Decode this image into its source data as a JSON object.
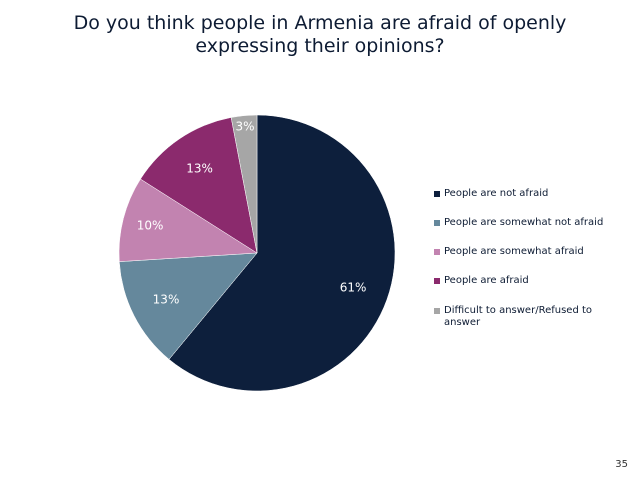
{
  "slide": {
    "title": "Do you think people in Armenia are afraid of openly expressing their opinions?",
    "page_number": "35"
  },
  "chart_data": {
    "type": "pie",
    "title": "Do you think people in Armenia are afraid of openly expressing their opinions?",
    "legend_position": "right",
    "start": "12 o'clock, clockwise",
    "categories": [
      "People are not afraid",
      "People are somewhat not afraid",
      "People are somewhat afraid",
      "People are afraid",
      "Difficult to answer/Refused to answer"
    ],
    "values": [
      61,
      13,
      10,
      13,
      3
    ],
    "labels": [
      "61%",
      "13%",
      "10%",
      "13%",
      "3%"
    ],
    "colors": [
      "#0d1f3c",
      "#65889c",
      "#c283b0",
      "#8b2a6d",
      "#a6a6a6"
    ],
    "label_colors": [
      "#ffffff",
      "#ffffff",
      "#ffffff",
      "#ffffff",
      "#ffffff"
    ]
  }
}
